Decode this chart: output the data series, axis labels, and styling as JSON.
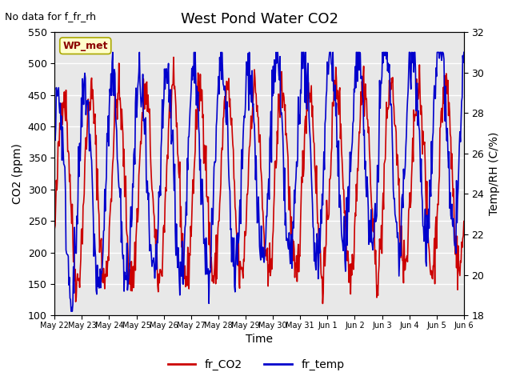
{
  "title": "West Pond Water CO2",
  "top_left_text": "No data for f_fr_rh",
  "legend_label_text": "WP_met",
  "ylabel_left": "CO2 (ppm)",
  "ylabel_right": "Temp/RH (C/%)",
  "xlabel": "Time",
  "ylim_left": [
    100,
    550
  ],
  "ylim_right": [
    18,
    32
  ],
  "yticks_left": [
    100,
    150,
    200,
    250,
    300,
    350,
    400,
    450,
    500,
    550
  ],
  "yticks_right": [
    18,
    20,
    22,
    24,
    26,
    28,
    30,
    32
  ],
  "xtick_labels": [
    "May 22",
    "May 23",
    "May 24",
    "May 25",
    "May 26",
    "May 27",
    "May 28",
    "May 29",
    "May 30",
    "May 31",
    "Jun 1",
    "Jun 2",
    "Jun 3",
    "Jun 4",
    "Jun 5",
    "Jun 6"
  ],
  "plot_bg_color": "#e8e8e8",
  "co2_color": "#cc0000",
  "temp_color": "#0000cc",
  "legend_label1": "fr_CO2",
  "legend_label2": "fr_temp",
  "n_days": 15,
  "grid_color": "white",
  "grid_linewidth": 1.0,
  "line_width": 1.2
}
